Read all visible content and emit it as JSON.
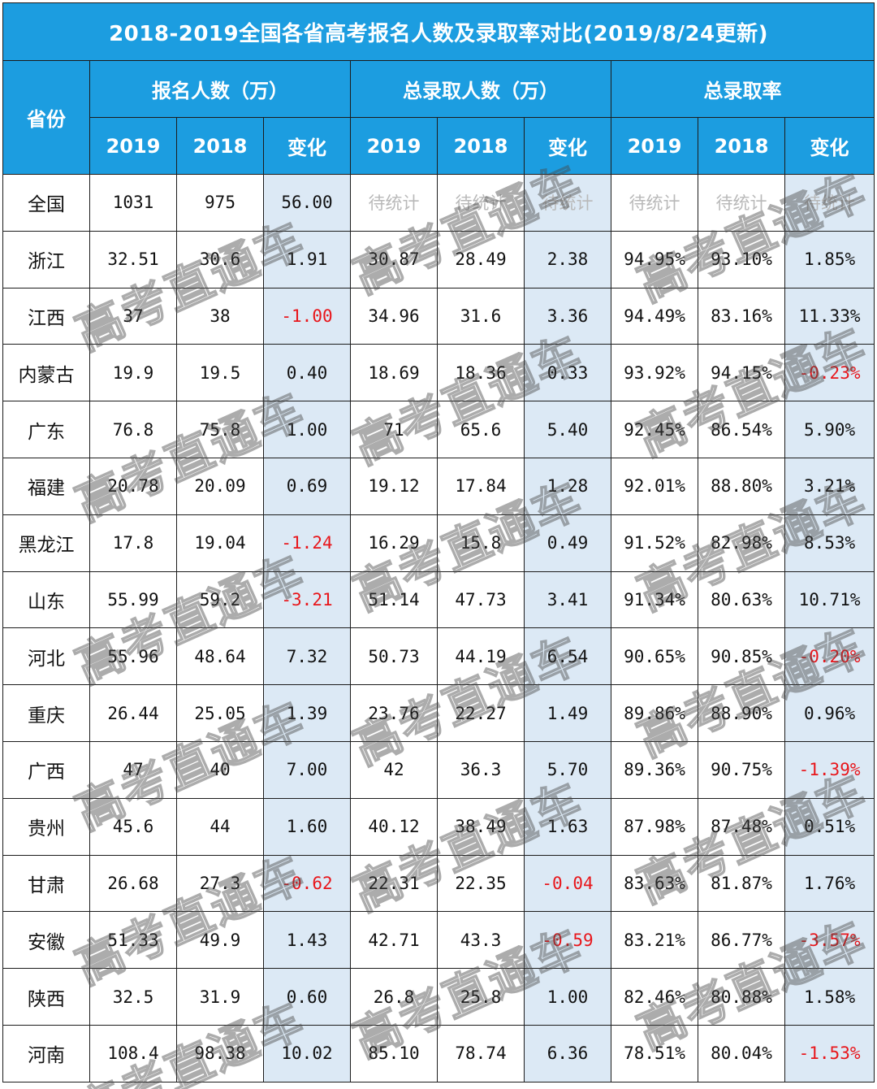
{
  "title": "2018-2019全国各省高考报名人数及录取率对比(2019/8/24更新)",
  "header": {
    "province": "省份",
    "groups": [
      "报名人数（万）",
      "总录取人数（万）",
      "总录取率"
    ],
    "subcols": [
      "2019",
      "2018",
      "变化",
      "2019",
      "2018",
      "变化",
      "2019",
      "2018",
      "变化"
    ]
  },
  "rows": [
    {
      "province": "全国",
      "cells": [
        "1031",
        "975",
        "56.00",
        "待统计",
        "待统计",
        "待统计",
        "待统计",
        "待统计",
        "待统计"
      ]
    },
    {
      "province": "浙江",
      "cells": [
        "32.51",
        "30.6",
        "1.91",
        "30.87",
        "28.49",
        "2.38",
        "94.95%",
        "93.10%",
        "1.85%"
      ]
    },
    {
      "province": "江西",
      "cells": [
        "37",
        "38",
        "-1.00",
        "34.96",
        "31.6",
        "3.36",
        "94.49%",
        "83.16%",
        "11.33%"
      ]
    },
    {
      "province": "内蒙古",
      "cells": [
        "19.9",
        "19.5",
        "0.40",
        "18.69",
        "18.36",
        "0.33",
        "93.92%",
        "94.15%",
        "-0.23%"
      ]
    },
    {
      "province": "广东",
      "cells": [
        "76.8",
        "75.8",
        "1.00",
        "71",
        "65.6",
        "5.40",
        "92.45%",
        "86.54%",
        "5.90%"
      ]
    },
    {
      "province": "福建",
      "cells": [
        "20.78",
        "20.09",
        "0.69",
        "19.12",
        "17.84",
        "1.28",
        "92.01%",
        "88.80%",
        "3.21%"
      ]
    },
    {
      "province": "黑龙江",
      "cells": [
        "17.8",
        "19.04",
        "-1.24",
        "16.29",
        "15.8",
        "0.49",
        "91.52%",
        "82.98%",
        "8.53%"
      ]
    },
    {
      "province": "山东",
      "cells": [
        "55.99",
        "59.2",
        "-3.21",
        "51.14",
        "47.73",
        "3.41",
        "91.34%",
        "80.63%",
        "10.71%"
      ]
    },
    {
      "province": "河北",
      "cells": [
        "55.96",
        "48.64",
        "7.32",
        "50.73",
        "44.19",
        "6.54",
        "90.65%",
        "90.85%",
        "-0.20%"
      ]
    },
    {
      "province": "重庆",
      "cells": [
        "26.44",
        "25.05",
        "1.39",
        "23.76",
        "22.27",
        "1.49",
        "89.86%",
        "88.90%",
        "0.96%"
      ]
    },
    {
      "province": "广西",
      "cells": [
        "47",
        "40",
        "7.00",
        "42",
        "36.3",
        "5.70",
        "89.36%",
        "90.75%",
        "-1.39%"
      ]
    },
    {
      "province": "贵州",
      "cells": [
        "45.6",
        "44",
        "1.60",
        "40.12",
        "38.49",
        "1.63",
        "87.98%",
        "87.48%",
        "0.51%"
      ]
    },
    {
      "province": "甘肃",
      "cells": [
        "26.68",
        "27.3",
        "-0.62",
        "22.31",
        "22.35",
        "-0.04",
        "83.63%",
        "81.87%",
        "1.76%"
      ]
    },
    {
      "province": "安徽",
      "cells": [
        "51.33",
        "49.9",
        "1.43",
        "42.71",
        "43.3",
        "-0.59",
        "83.21%",
        "86.77%",
        "-3.57%"
      ]
    },
    {
      "province": "陕西",
      "cells": [
        "32.5",
        "31.9",
        "0.60",
        "26.8",
        "25.8",
        "1.00",
        "82.46%",
        "80.88%",
        "1.58%"
      ]
    },
    {
      "province": "河南",
      "cells": [
        "108.4",
        "98.38",
        "10.02",
        "85.10",
        "78.74",
        "6.36",
        "78.51%",
        "80.04%",
        "-1.53%"
      ]
    }
  ],
  "watermark": "高考直通车",
  "colors": {
    "header_bg": "#1c9de0",
    "header_text": "#ffffff",
    "change_col_bg": "#dce9f5",
    "negative": "#e8161b",
    "pending": "#b9b9b9"
  }
}
